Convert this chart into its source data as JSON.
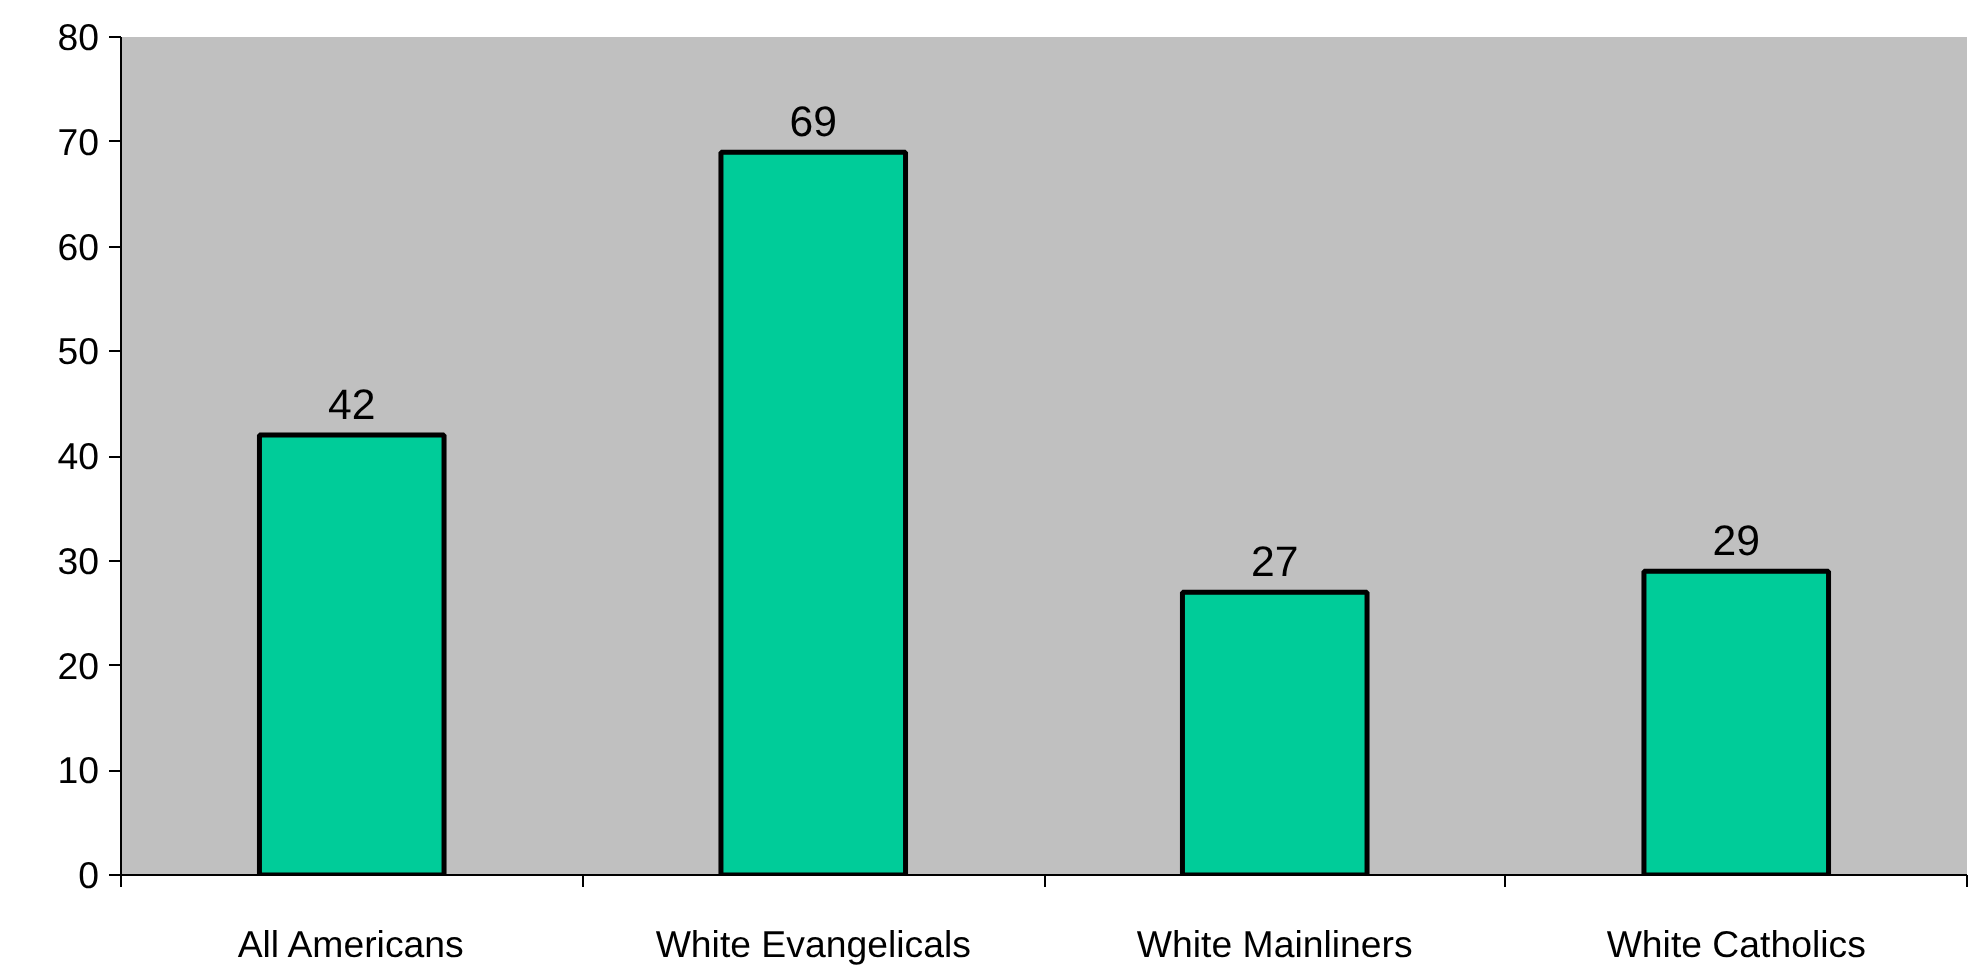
{
  "chart_data": {
    "type": "bar",
    "categories": [
      "All Americans",
      "White Evangelicals",
      "White Mainliners",
      "White Catholics"
    ],
    "values": [
      42,
      69,
      27,
      29
    ],
    "color": "#00cc99",
    "ylim": [
      0,
      80
    ],
    "yticks": [
      0,
      10,
      20,
      30,
      40,
      50,
      60,
      70,
      80
    ],
    "data_labels": true,
    "grid": false
  }
}
